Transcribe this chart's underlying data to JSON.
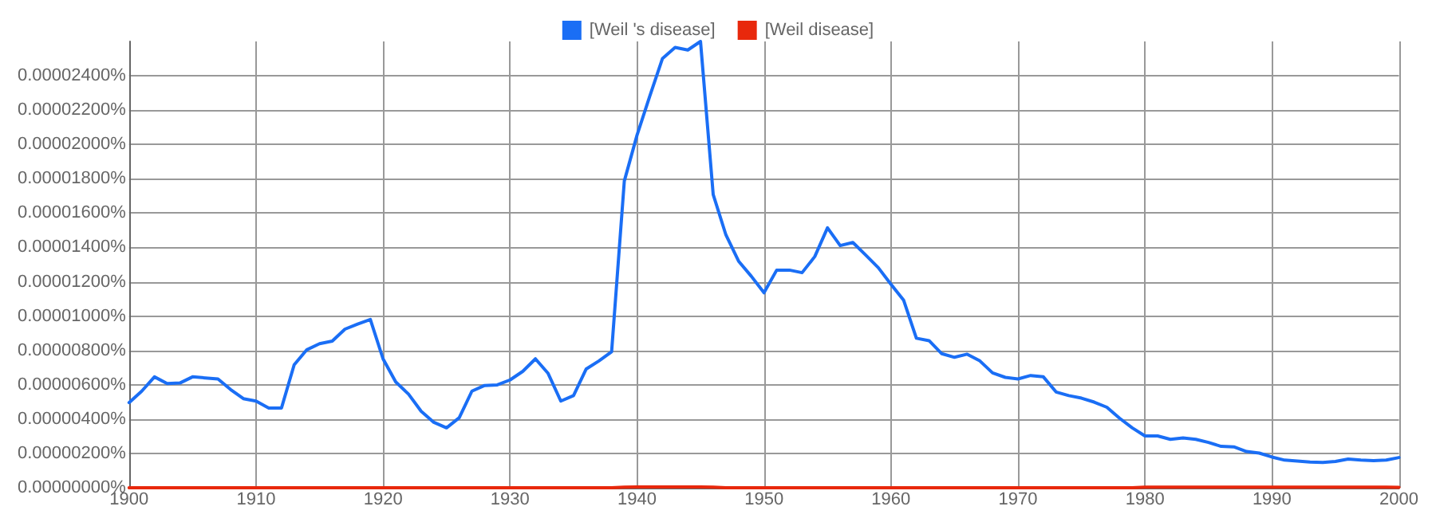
{
  "chart_data": {
    "type": "line",
    "x": [
      1900,
      1901,
      1902,
      1903,
      1904,
      1905,
      1906,
      1907,
      1908,
      1909,
      1910,
      1911,
      1912,
      1913,
      1914,
      1915,
      1916,
      1917,
      1918,
      1919,
      1920,
      1921,
      1922,
      1923,
      1924,
      1925,
      1926,
      1927,
      1928,
      1929,
      1930,
      1931,
      1932,
      1933,
      1934,
      1935,
      1936,
      1937,
      1938,
      1939,
      1940,
      1941,
      1942,
      1943,
      1944,
      1945,
      1946,
      1947,
      1948,
      1949,
      1950,
      1951,
      1952,
      1953,
      1954,
      1955,
      1956,
      1957,
      1958,
      1959,
      1960,
      1961,
      1962,
      1963,
      1964,
      1965,
      1966,
      1967,
      1968,
      1969,
      1970,
      1971,
      1972,
      1973,
      1974,
      1975,
      1976,
      1977,
      1978,
      1979,
      1980,
      1981,
      1982,
      1983,
      1984,
      1985,
      1986,
      1987,
      1988,
      1989,
      1990,
      1991,
      1992,
      1993,
      1994,
      1995,
      1996,
      1997,
      1998,
      1999,
      2000
    ],
    "series": [
      {
        "name": "[Weil 's disease]",
        "color": "#1a6ef5",
        "values": [
          4.96e-06,
          5.63e-06,
          6.46e-06,
          6.07e-06,
          6.1e-06,
          6.46e-06,
          6.4e-06,
          6.34e-06,
          5.72e-06,
          5.19e-06,
          5.05e-06,
          4.64e-06,
          4.64e-06,
          7.16e-06,
          8.04e-06,
          8.39e-06,
          8.54e-06,
          9.24e-06,
          9.54e-06,
          9.8e-06,
          7.51e-06,
          6.16e-06,
          5.46e-06,
          4.46e-06,
          3.81e-06,
          3.49e-06,
          4.08e-06,
          5.63e-06,
          5.96e-06,
          5.99e-06,
          6.28e-06,
          6.78e-06,
          7.51e-06,
          6.66e-06,
          5.05e-06,
          5.37e-06,
          6.92e-06,
          7.39e-06,
          7.92e-06,
          1.787e-05,
          2.054e-05,
          2.28e-05,
          2.5e-05,
          2.565e-05,
          2.55e-05,
          2.6e-05,
          1.708e-05,
          1.473e-05,
          1.32e-05,
          1.232e-05,
          1.136e-05,
          1.268e-05,
          1.268e-05,
          1.253e-05,
          1.347e-05,
          1.514e-05,
          1.411e-05,
          1.429e-05,
          1.356e-05,
          1.282e-05,
          1.185e-05,
          1.092e-05,
          8.71e-06,
          8.57e-06,
          7.81e-06,
          7.6e-06,
          7.78e-06,
          7.39e-06,
          6.69e-06,
          6.43e-06,
          6.34e-06,
          6.54e-06,
          6.46e-06,
          5.58e-06,
          5.37e-06,
          5.22e-06,
          4.99e-06,
          4.69e-06,
          4.05e-06,
          3.49e-06,
          3.02e-06,
          3.02e-06,
          2.82e-06,
          2.9e-06,
          2.82e-06,
          2.64e-06,
          2.41e-06,
          2.38e-06,
          2.11e-06,
          2.02e-06,
          1.79e-06,
          1.61e-06,
          1.56e-06,
          1.5e-06,
          1.47e-06,
          1.53e-06,
          1.67e-06,
          1.61e-06,
          1.58e-06,
          1.61e-06,
          1.76e-06
        ]
      },
      {
        "name": "[Weil disease]",
        "color": "#e8280c",
        "values": [
          0,
          0,
          0,
          0,
          0,
          0,
          0,
          0,
          0,
          0,
          0,
          0,
          0,
          0,
          0,
          0,
          0,
          0,
          0,
          0,
          0,
          0,
          0,
          0,
          0,
          0,
          0,
          0,
          0,
          0,
          0,
          0,
          0,
          0,
          0,
          0,
          0,
          0,
          0,
          3e-08,
          5e-08,
          5e-08,
          5e-08,
          5e-08,
          5e-08,
          5e-08,
          3e-08,
          0,
          0,
          0,
          0,
          0,
          0,
          0,
          0,
          0,
          0,
          0,
          0,
          0,
          0,
          0,
          0,
          0,
          0,
          0,
          0,
          0,
          0,
          0,
          0,
          0,
          0,
          0,
          0,
          0,
          0,
          0,
          0,
          0,
          3e-08,
          3e-08,
          3e-08,
          3e-08,
          3e-08,
          3e-08,
          3e-08,
          3e-08,
          3e-08,
          3e-08,
          4e-08,
          4e-08,
          4e-08,
          4e-08,
          4e-08,
          4e-08,
          4e-08,
          4e-08,
          4e-08,
          4e-08,
          2e-08
        ]
      }
    ],
    "xlim": [
      1900,
      2000
    ],
    "xticks": [
      1900,
      1910,
      1920,
      1930,
      1940,
      1950,
      1960,
      1970,
      1980,
      1990,
      2000
    ],
    "ylim": [
      0,
      2.6e-05
    ],
    "yticks": [
      {
        "value": 0,
        "label": "0.00000000%"
      },
      {
        "value": 2e-06,
        "label": "0.00000200%"
      },
      {
        "value": 4e-06,
        "label": "0.00000400%"
      },
      {
        "value": 6e-06,
        "label": "0.00000600%"
      },
      {
        "value": 8e-06,
        "label": "0.00000800%"
      },
      {
        "value": 1e-05,
        "label": "0.00001000%"
      },
      {
        "value": 1.2e-05,
        "label": "0.00001200%"
      },
      {
        "value": 1.4e-05,
        "label": "0.00001400%"
      },
      {
        "value": 1.6e-05,
        "label": "0.00001600%"
      },
      {
        "value": 1.8e-05,
        "label": "0.00001800%"
      },
      {
        "value": 2e-05,
        "label": "0.00002000%"
      },
      {
        "value": 2.2e-05,
        "label": "0.00002200%"
      },
      {
        "value": 2.4e-05,
        "label": "0.00002400%"
      }
    ],
    "grid": true,
    "legend": "top",
    "marker": "none",
    "line_style": "solid"
  }
}
